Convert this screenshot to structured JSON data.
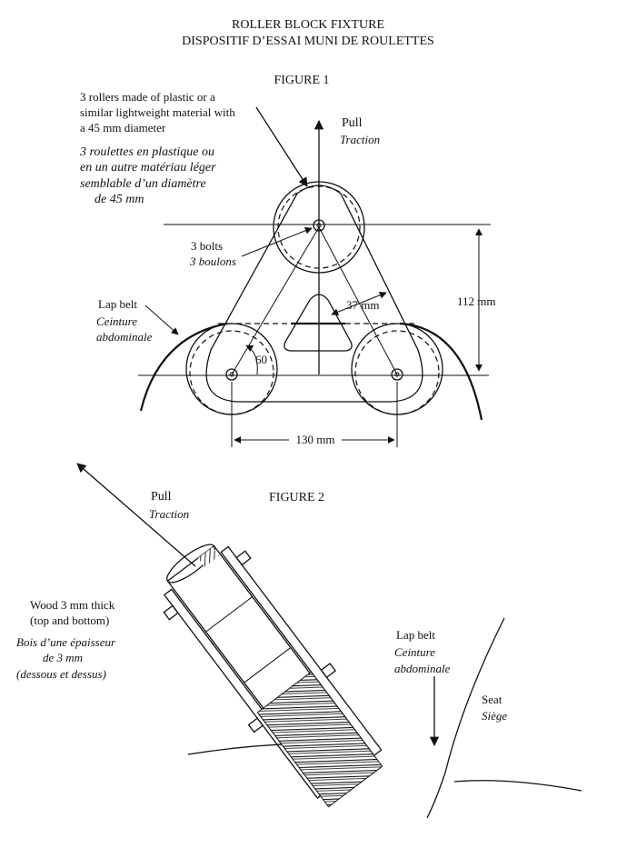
{
  "title": {
    "en": "ROLLER BLOCK FIXTURE",
    "fr": "DISPOSITIF D’ESSAI MUNI DE ROULETTES"
  },
  "figure1": {
    "label": "FIGURE 1",
    "rollers_note_en": [
      "3 rollers made of plastic or a",
      "similar lightweight material with",
      "a 45 mm diameter"
    ],
    "rollers_note_fr": [
      "3 roulettes en plastique ou",
      "en un autre matériau léger",
      "semblable d’un diamètre",
      "de 45 mm"
    ],
    "pull_en": "Pull",
    "pull_fr": "Traction",
    "bolts_en": "3 bolts",
    "bolts_fr": "3 boulons",
    "lapbelt_en": "Lap belt",
    "lapbelt_fr": [
      "Ceinture",
      "abdominale"
    ],
    "dim_37": "37 mm",
    "dim_112": "112 mm",
    "angle_60": "60",
    "dim_130": "130 mm"
  },
  "figure2": {
    "label": "FIGURE 2",
    "pull_en": "Pull",
    "pull_fr": "Traction",
    "wood_en": [
      "Wood 3 mm thick",
      "(top and bottom)"
    ],
    "wood_fr": [
      "Bois d’une épaisseur",
      "de 3 mm",
      "(dessous et dessus)"
    ],
    "lapbelt_en": "Lap belt",
    "lapbelt_fr": [
      "Ceinture",
      "abdominale"
    ],
    "seat_en": "Seat",
    "seat_fr": "Siège"
  }
}
